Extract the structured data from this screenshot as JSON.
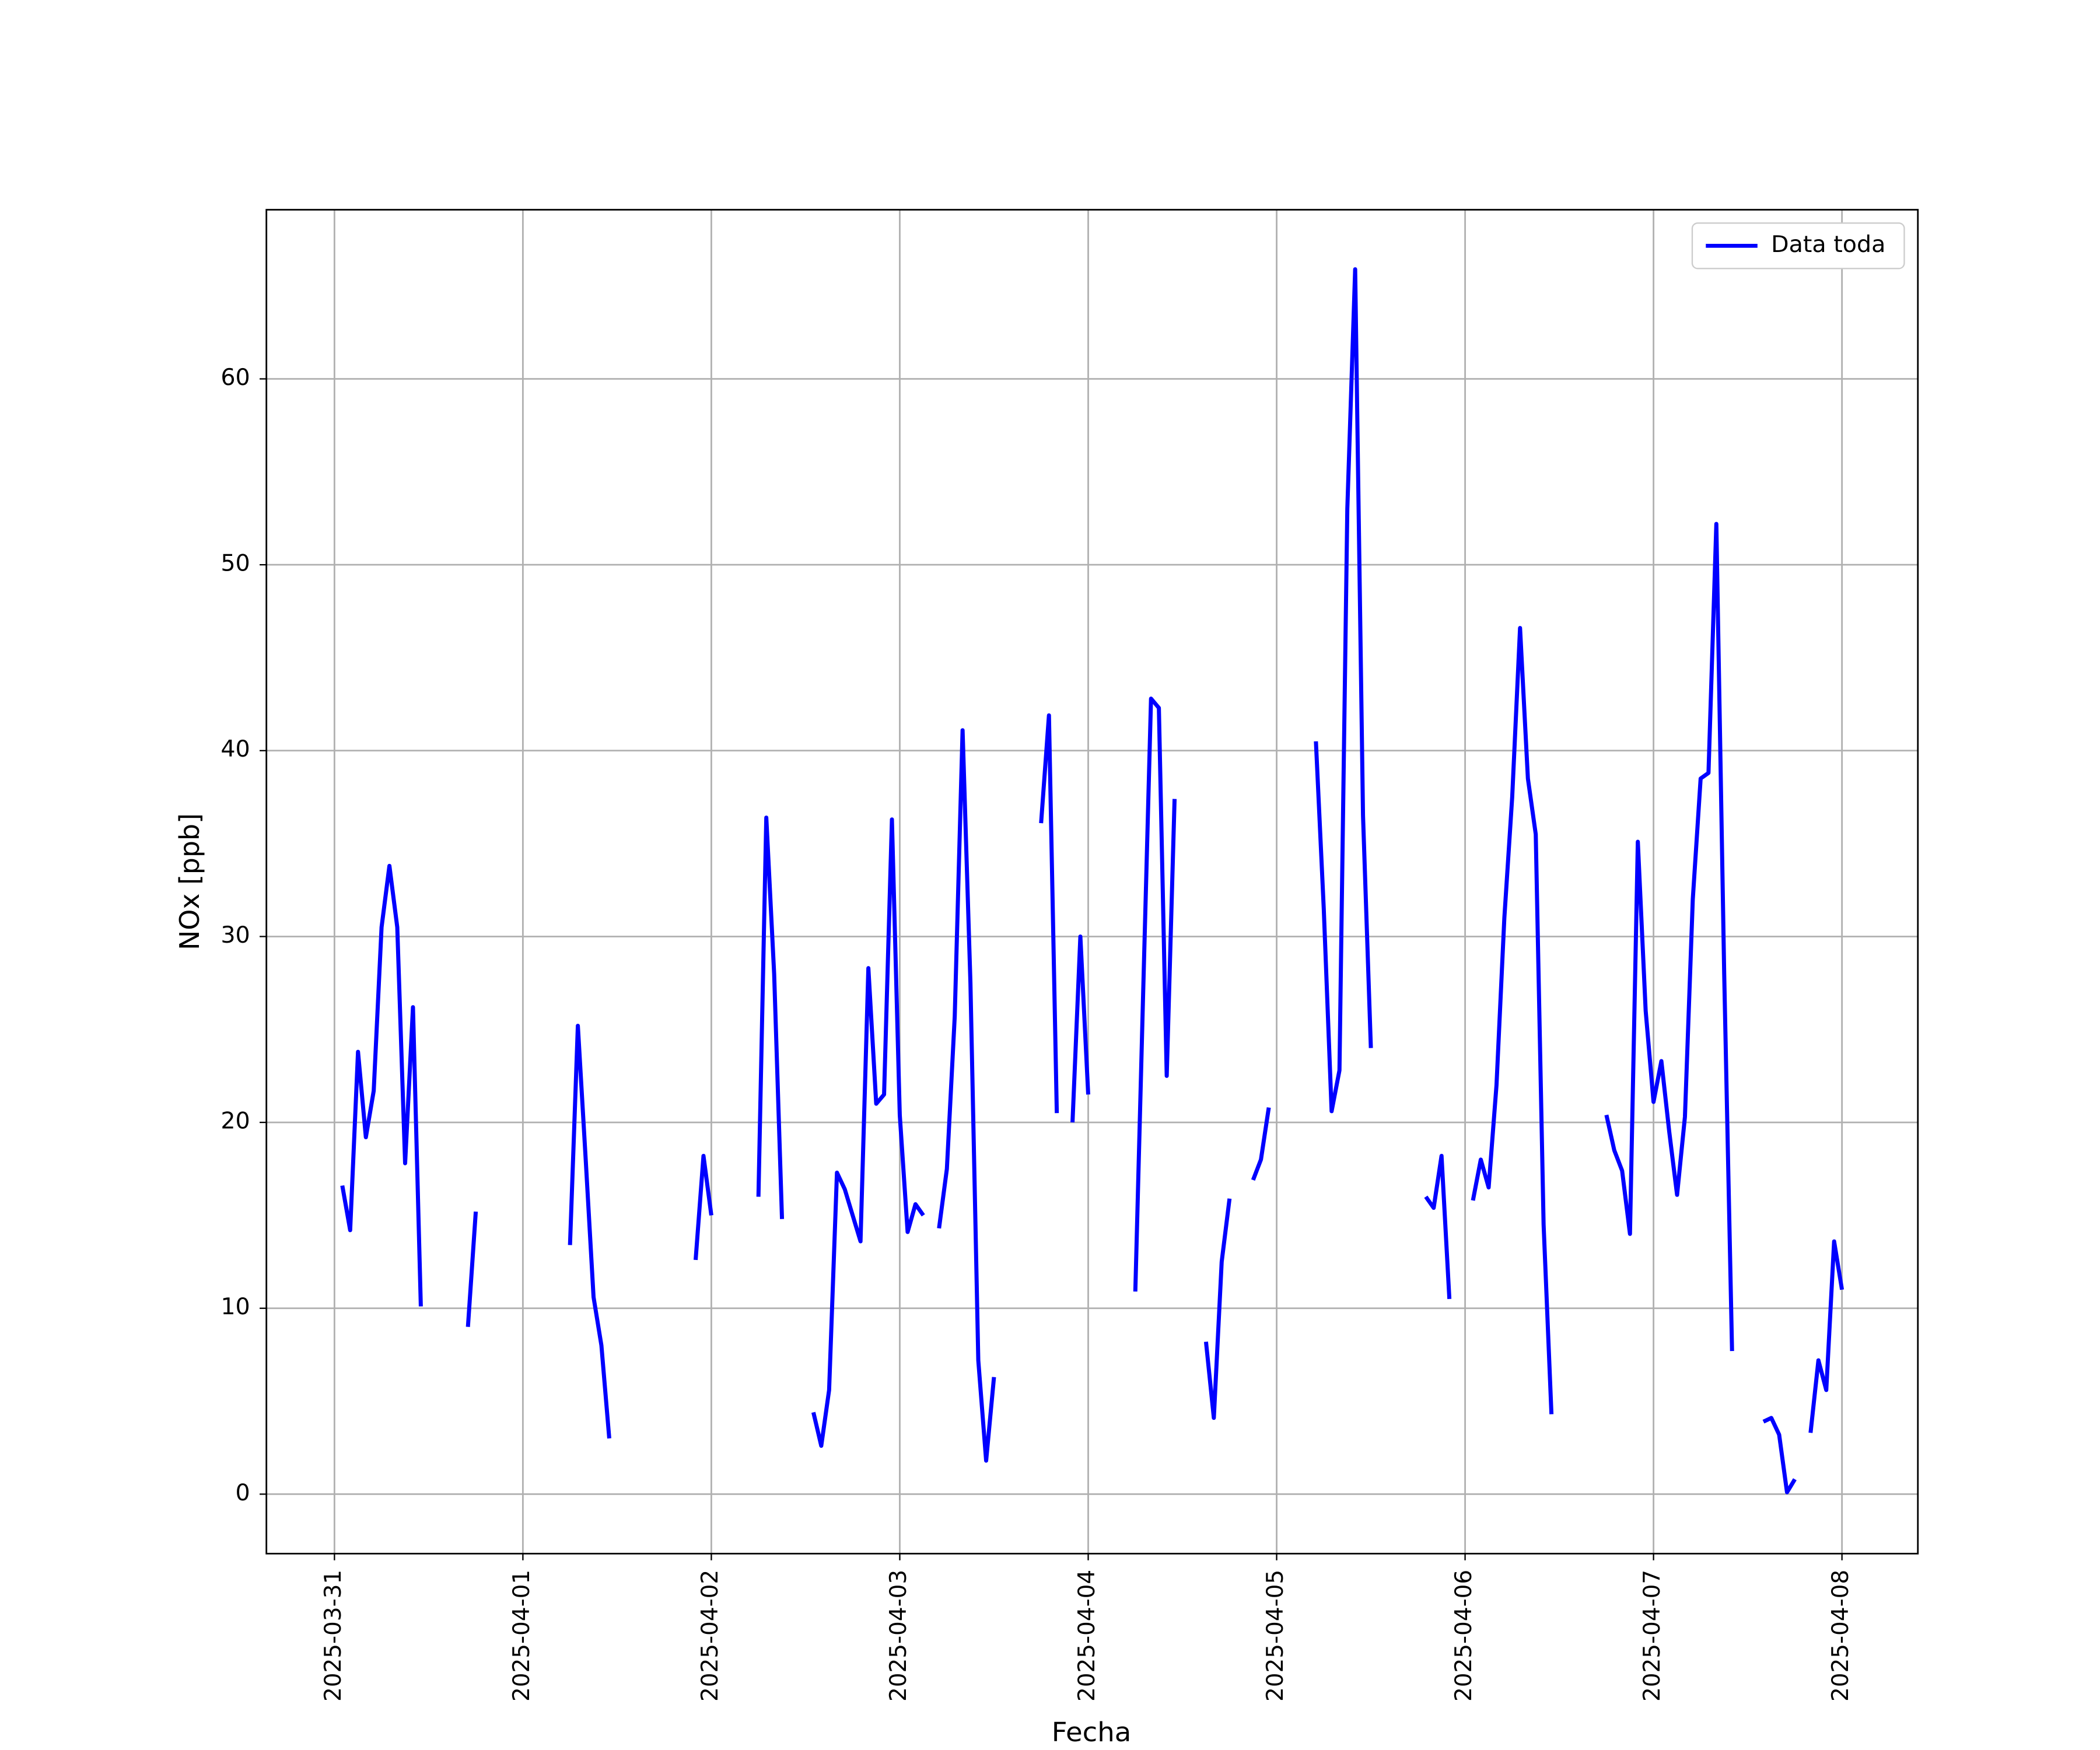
{
  "chart_data": {
    "type": "line",
    "xlabel": "Fecha",
    "ylabel": "NOx [ppb]",
    "x": [
      "2025-03-31T01:00",
      "2025-03-31T02:00",
      "2025-03-31T03:00",
      "2025-03-31T04:00",
      "2025-03-31T05:00",
      "2025-03-31T06:00",
      "2025-03-31T07:00",
      "2025-03-31T08:00",
      "2025-03-31T09:00",
      "2025-03-31T10:00",
      "2025-03-31T11:00",
      "2025-03-31T12:00",
      "2025-03-31T17:00",
      "2025-03-31T18:00",
      "2025-03-31T19:00",
      "2025-04-01T06:00",
      "2025-04-01T07:00",
      "2025-04-01T08:00",
      "2025-04-01T09:00",
      "2025-04-01T10:00",
      "2025-04-01T11:00",
      "2025-04-01T12:00",
      "2025-04-01T22:00",
      "2025-04-01T23:00",
      "2025-04-02T00:00",
      "2025-04-02T01:00",
      "2025-04-02T06:00",
      "2025-04-02T07:00",
      "2025-04-02T08:00",
      "2025-04-02T09:00",
      "2025-04-02T10:00",
      "2025-04-02T13:00",
      "2025-04-02T14:00",
      "2025-04-02T15:00",
      "2025-04-02T16:00",
      "2025-04-02T17:00",
      "2025-04-02T18:00",
      "2025-04-02T19:00",
      "2025-04-02T20:00",
      "2025-04-02T21:00",
      "2025-04-02T22:00",
      "2025-04-02T23:00",
      "2025-04-03T00:00",
      "2025-04-03T01:00",
      "2025-04-03T02:00",
      "2025-04-03T03:00",
      "2025-04-03T04:00",
      "2025-04-03T05:00",
      "2025-04-03T06:00",
      "2025-04-03T07:00",
      "2025-04-03T08:00",
      "2025-04-03T09:00",
      "2025-04-03T10:00",
      "2025-04-03T11:00",
      "2025-04-03T12:00",
      "2025-04-03T13:00",
      "2025-04-03T18:00",
      "2025-04-03T19:00",
      "2025-04-03T20:00",
      "2025-04-03T21:00",
      "2025-04-03T22:00",
      "2025-04-03T23:00",
      "2025-04-04T00:00",
      "2025-04-04T01:00",
      "2025-04-04T06:00",
      "2025-04-04T07:00",
      "2025-04-04T08:00",
      "2025-04-04T09:00",
      "2025-04-04T10:00",
      "2025-04-04T11:00",
      "2025-04-04T12:00",
      "2025-04-04T15:00",
      "2025-04-04T16:00",
      "2025-04-04T17:00",
      "2025-04-04T18:00",
      "2025-04-04T19:00",
      "2025-04-04T21:00",
      "2025-04-04T22:00",
      "2025-04-04T23:00",
      "2025-04-05T00:00",
      "2025-04-05T05:00",
      "2025-04-05T06:00",
      "2025-04-05T07:00",
      "2025-04-05T08:00",
      "2025-04-05T09:00",
      "2025-04-05T10:00",
      "2025-04-05T11:00",
      "2025-04-05T12:00",
      "2025-04-05T13:00",
      "2025-04-05T19:00",
      "2025-04-05T20:00",
      "2025-04-05T21:00",
      "2025-04-05T22:00",
      "2025-04-05T23:00",
      "2025-04-06T01:00",
      "2025-04-06T02:00",
      "2025-04-06T03:00",
      "2025-04-06T04:00",
      "2025-04-06T05:00",
      "2025-04-06T06:00",
      "2025-04-06T07:00",
      "2025-04-06T08:00",
      "2025-04-06T09:00",
      "2025-04-06T10:00",
      "2025-04-06T11:00",
      "2025-04-06T12:00",
      "2025-04-06T18:00",
      "2025-04-06T19:00",
      "2025-04-06T20:00",
      "2025-04-06T21:00",
      "2025-04-06T22:00",
      "2025-04-06T23:00",
      "2025-04-07T00:00",
      "2025-04-07T01:00",
      "2025-04-07T02:00",
      "2025-04-07T03:00",
      "2025-04-07T04:00",
      "2025-04-07T05:00",
      "2025-04-07T06:00",
      "2025-04-07T07:00",
      "2025-04-07T08:00",
      "2025-04-07T09:00",
      "2025-04-07T10:00",
      "2025-04-07T11:00",
      "2025-04-07T14:00",
      "2025-04-07T15:00",
      "2025-04-07T16:00",
      "2025-04-07T17:00",
      "2025-04-07T18:00",
      "2025-04-07T19:00",
      "2025-04-07T20:00",
      "2025-04-07T21:00",
      "2025-04-07T22:00",
      "2025-04-07T23:00",
      "2025-04-08T00:00"
    ],
    "series": [
      {
        "name": "Data toda",
        "color": "#0000ff",
        "values": [
          16.6,
          14.2,
          23.8,
          19.2,
          21.7,
          30.5,
          33.8,
          30.5,
          17.8,
          26.2,
          10.1,
          null,
          9.0,
          15.2,
          null,
          13.4,
          25.2,
          18.0,
          10.6,
          8.0,
          3.0,
          null,
          12.6,
          18.2,
          15.0,
          null,
          16.0,
          36.4,
          28.0,
          14.8,
          null,
          4.4,
          2.6,
          5.6,
          17.3,
          16.4,
          15.0,
          13.6,
          28.3,
          21.0,
          21.5,
          36.3,
          20.4,
          14.1,
          15.6,
          15.0,
          null,
          14.3,
          17.5,
          25.7,
          41.1,
          27.5,
          7.2,
          1.8,
          6.3,
          null,
          36.1,
          41.9,
          20.5,
          null,
          20.0,
          30.0,
          21.5,
          null,
          10.9,
          27.0,
          42.8,
          42.3,
          22.5,
          37.4,
          null,
          8.2,
          4.1,
          12.5,
          15.9,
          null,
          16.9,
          18.0,
          20.8,
          null,
          40.5,
          31.5,
          20.6,
          22.8,
          53.0,
          65.9,
          36.5,
          24.0,
          null,
          16.0,
          15.4,
          18.2,
          10.5,
          null,
          15.8,
          18.0,
          16.5,
          22.0,
          31.0,
          37.5,
          46.6,
          38.5,
          35.5,
          14.5,
          4.3,
          null,
          20.4,
          18.5,
          17.4,
          14.0,
          35.1,
          26.0,
          21.1,
          23.3,
          19.5,
          16.1,
          20.3,
          32.0,
          38.5,
          38.8,
          52.2,
          28.0,
          7.7,
          null,
          3.9,
          4.1,
          3.2,
          0.1,
          0.8,
          null,
          3.3,
          7.2,
          5.6,
          13.6,
          11.0
        ]
      }
    ],
    "xlim": [
      "2025-03-30T15:20",
      "2025-04-08T09:40"
    ],
    "xticks": [
      "2025-03-31",
      "2025-04-01",
      "2025-04-02",
      "2025-04-03",
      "2025-04-04",
      "2025-04-05",
      "2025-04-06",
      "2025-04-07",
      "2025-04-08"
    ],
    "ylim": [
      -3.2,
      69.1
    ],
    "yticks": [
      0,
      10,
      20,
      30,
      40,
      50,
      60
    ],
    "grid": true,
    "legend": "upper right"
  }
}
